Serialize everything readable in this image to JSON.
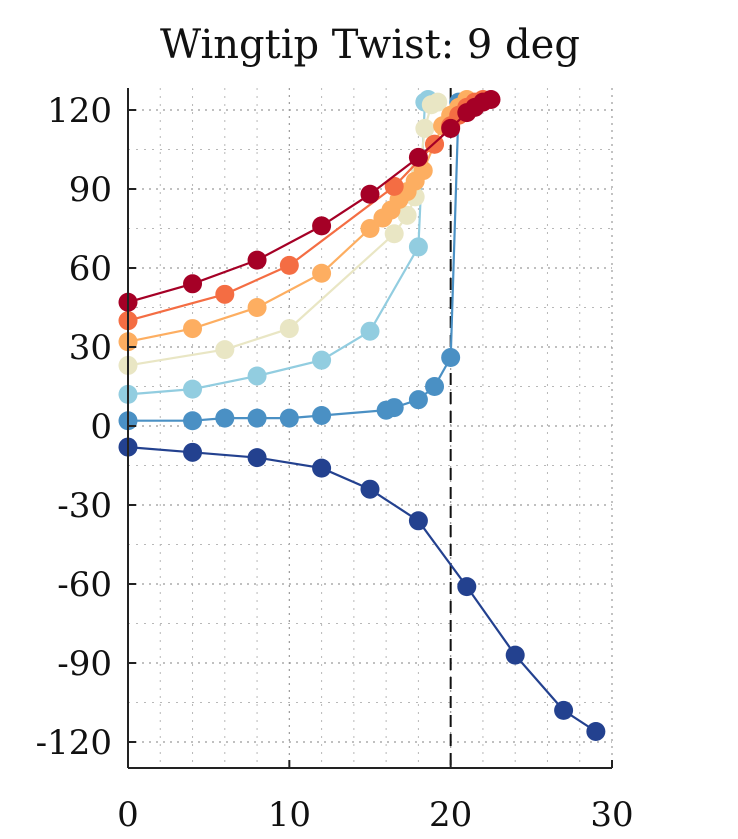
{
  "chart_data": {
    "type": "line",
    "title": "Wingtip Twist: 9 deg",
    "xlabel": "",
    "ylabel": "",
    "xlim": [
      0,
      30
    ],
    "ylim": [
      -130,
      130
    ],
    "xticks": [
      0,
      10,
      20,
      30
    ],
    "yticks": [
      -120,
      -90,
      -60,
      -30,
      0,
      30,
      60,
      90,
      120
    ],
    "x_minor_step": 2,
    "y_minor_step": 15,
    "grid": true,
    "reference_line": {
      "x": 20,
      "style": "dashed",
      "color": "#000000"
    },
    "series": [
      {
        "color": "#A50026",
        "points": [
          [
            0,
            47
          ],
          [
            4,
            54
          ],
          [
            8,
            63
          ],
          [
            12,
            76
          ],
          [
            15,
            88
          ],
          [
            18,
            102
          ],
          [
            20,
            113
          ],
          [
            21,
            119
          ],
          [
            21.5,
            121
          ],
          [
            22,
            123
          ],
          [
            22.5,
            124
          ]
        ]
      },
      {
        "color": "#F46D43",
        "points": [
          [
            0,
            40
          ],
          [
            6,
            50
          ],
          [
            10,
            61
          ],
          [
            16.5,
            91
          ],
          [
            19,
            107
          ],
          [
            20,
            114
          ],
          [
            20.5,
            118
          ],
          [
            21,
            121
          ],
          [
            21.5,
            123
          ],
          [
            22,
            124
          ]
        ]
      },
      {
        "color": "#FDAE61",
        "points": [
          [
            0,
            32
          ],
          [
            4,
            37
          ],
          [
            8,
            45
          ],
          [
            12,
            58
          ],
          [
            15,
            75
          ],
          [
            15.8,
            79
          ],
          [
            16.3,
            82
          ],
          [
            16.8,
            86
          ],
          [
            17.3,
            89
          ],
          [
            17.8,
            93
          ],
          [
            18.3,
            97
          ],
          [
            19,
            107
          ],
          [
            19.5,
            114
          ],
          [
            20,
            118
          ],
          [
            20.5,
            121
          ],
          [
            21,
            124
          ]
        ]
      },
      {
        "color": "#E9E6C4",
        "points": [
          [
            0,
            23
          ],
          [
            6,
            29
          ],
          [
            10,
            37
          ],
          [
            16.5,
            73
          ],
          [
            17.3,
            80
          ],
          [
            17.8,
            87
          ],
          [
            18.1,
            98
          ],
          [
            18.4,
            113
          ],
          [
            18.8,
            122
          ],
          [
            19.2,
            123
          ]
        ]
      },
      {
        "color": "#92CDE0",
        "points": [
          [
            0,
            12
          ],
          [
            4,
            14
          ],
          [
            8,
            19
          ],
          [
            12,
            25
          ],
          [
            15,
            36
          ],
          [
            18,
            68
          ],
          [
            18.4,
            123
          ],
          [
            18.6,
            124
          ]
        ]
      },
      {
        "color": "#4A90C4",
        "points": [
          [
            0,
            2
          ],
          [
            4,
            2
          ],
          [
            6,
            3
          ],
          [
            8,
            3
          ],
          [
            10,
            3
          ],
          [
            12,
            4
          ],
          [
            16,
            6
          ],
          [
            16.5,
            7
          ],
          [
            18,
            10
          ],
          [
            19,
            15
          ],
          [
            20,
            26
          ],
          [
            20.5,
            123
          ]
        ]
      },
      {
        "color": "#23418F",
        "points": [
          [
            0,
            -8
          ],
          [
            4,
            -10
          ],
          [
            8,
            -12
          ],
          [
            12,
            -16
          ],
          [
            15,
            -24
          ],
          [
            18,
            -36
          ],
          [
            21,
            -61
          ],
          [
            24,
            -87
          ],
          [
            27,
            -108
          ],
          [
            29,
            -116
          ]
        ]
      }
    ]
  }
}
